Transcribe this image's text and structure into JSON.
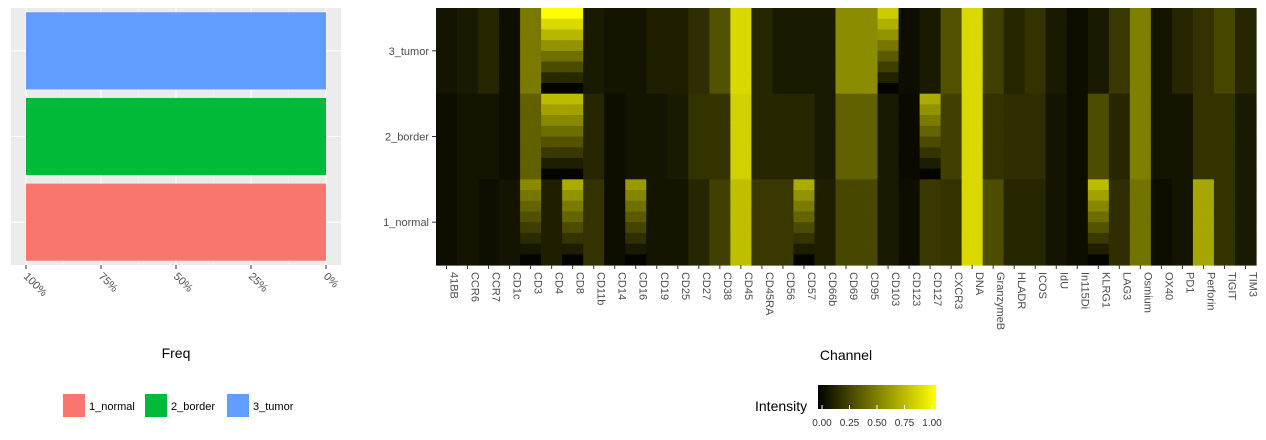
{
  "chart_data": [
    {
      "type": "bar",
      "orientation": "horizontal",
      "categories": [
        "1_normal",
        "2_border",
        "3_tumor"
      ],
      "values": [
        1.0,
        1.0,
        1.0
      ],
      "xlabel": "Freq",
      "x_reversed": true,
      "xlim": [
        0,
        1
      ],
      "x_ticks": [
        {
          "value": 1.0,
          "label": "100%"
        },
        {
          "value": 0.75,
          "label": "75%"
        },
        {
          "value": 0.5,
          "label": "50%"
        },
        {
          "value": 0.25,
          "label": "25%"
        },
        {
          "value": 0.0,
          "label": "0%"
        }
      ],
      "colors": {
        "1_normal": "#F8766D",
        "2_border": "#00BA38",
        "3_tumor": "#619CFF"
      },
      "grid": true,
      "legend": {
        "position": "bottom",
        "items": [
          {
            "label": "1_normal",
            "color": "#F8766D"
          },
          {
            "label": "2_border",
            "color": "#00BA38"
          },
          {
            "label": "3_tumor",
            "color": "#619CFF"
          }
        ]
      }
    },
    {
      "type": "heatmap",
      "xlabel": "Channel",
      "x": [
        "41BB",
        "CCR6",
        "CCR7",
        "CD1c",
        "CD3",
        "CD4",
        "CD8",
        "CD11b",
        "CD14",
        "CD16",
        "CD19",
        "CD25",
        "CD27",
        "CD38",
        "CD45",
        "CD45RA",
        "CD56",
        "CD57",
        "CD66b",
        "CD69",
        "CD95",
        "CD103",
        "CD123",
        "CD127",
        "CXCR3",
        "DNA",
        "GranzymeB",
        "HLADR",
        "ICOS",
        "IdU",
        "In115Di",
        "KLRG1",
        "LAG3",
        "Osmium",
        "OX40",
        "PD1",
        "Perforin",
        "TIGIT",
        "TIM3"
      ],
      "groups": [
        "1_normal",
        "2_border",
        "3_tumor"
      ],
      "rows_per_group": 8,
      "base_intensity": {
        "1_normal": [
          0.05,
          0.08,
          0.06,
          0.08,
          0.4,
          0.12,
          0.5,
          0.2,
          0.05,
          0.45,
          0.08,
          0.08,
          0.15,
          0.25,
          0.75,
          0.22,
          0.22,
          0.5,
          0.12,
          0.28,
          0.28,
          0.1,
          0.05,
          0.22,
          0.2,
          0.85,
          0.3,
          0.15,
          0.15,
          0.08,
          0.05,
          0.55,
          0.18,
          0.45,
          0.05,
          0.08,
          0.65,
          0.2,
          0.1
        ],
        "2_border": [
          0.05,
          0.08,
          0.08,
          0.06,
          0.38,
          0.55,
          0.55,
          0.15,
          0.05,
          0.08,
          0.08,
          0.1,
          0.2,
          0.2,
          0.82,
          0.15,
          0.15,
          0.15,
          0.1,
          0.38,
          0.38,
          0.1,
          0.04,
          0.5,
          0.25,
          0.85,
          0.2,
          0.18,
          0.18,
          0.08,
          0.05,
          0.3,
          0.15,
          0.5,
          0.08,
          0.08,
          0.2,
          0.2,
          0.1
        ],
        "3_tumor": [
          0.08,
          0.1,
          0.15,
          0.06,
          0.48,
          0.75,
          0.75,
          0.1,
          0.08,
          0.08,
          0.12,
          0.12,
          0.18,
          0.32,
          0.85,
          0.15,
          0.1,
          0.1,
          0.1,
          0.55,
          0.55,
          0.6,
          0.05,
          0.1,
          0.32,
          0.85,
          0.25,
          0.15,
          0.2,
          0.1,
          0.05,
          0.1,
          0.22,
          0.5,
          0.08,
          0.15,
          0.2,
          0.28,
          0.15
        ]
      },
      "gradient_channels": {
        "1_normal": [
          "CD3",
          "CD8",
          "CD16",
          "CD57",
          "KLRG1"
        ],
        "2_border": [
          "CD4",
          "CD8",
          "CD127"
        ],
        "3_tumor": [
          "CD4",
          "CD8",
          "CD103"
        ]
      },
      "y_ticks": [
        "3_tumor",
        "2_border",
        "1_normal"
      ],
      "colorscale": {
        "low": "#000000",
        "high": "#FFFF00"
      },
      "legend": {
        "title": "Intensity",
        "position": "bottom",
        "ticks": [
          "0.00",
          "0.25",
          "0.50",
          "0.75",
          "1.00"
        ]
      }
    }
  ]
}
